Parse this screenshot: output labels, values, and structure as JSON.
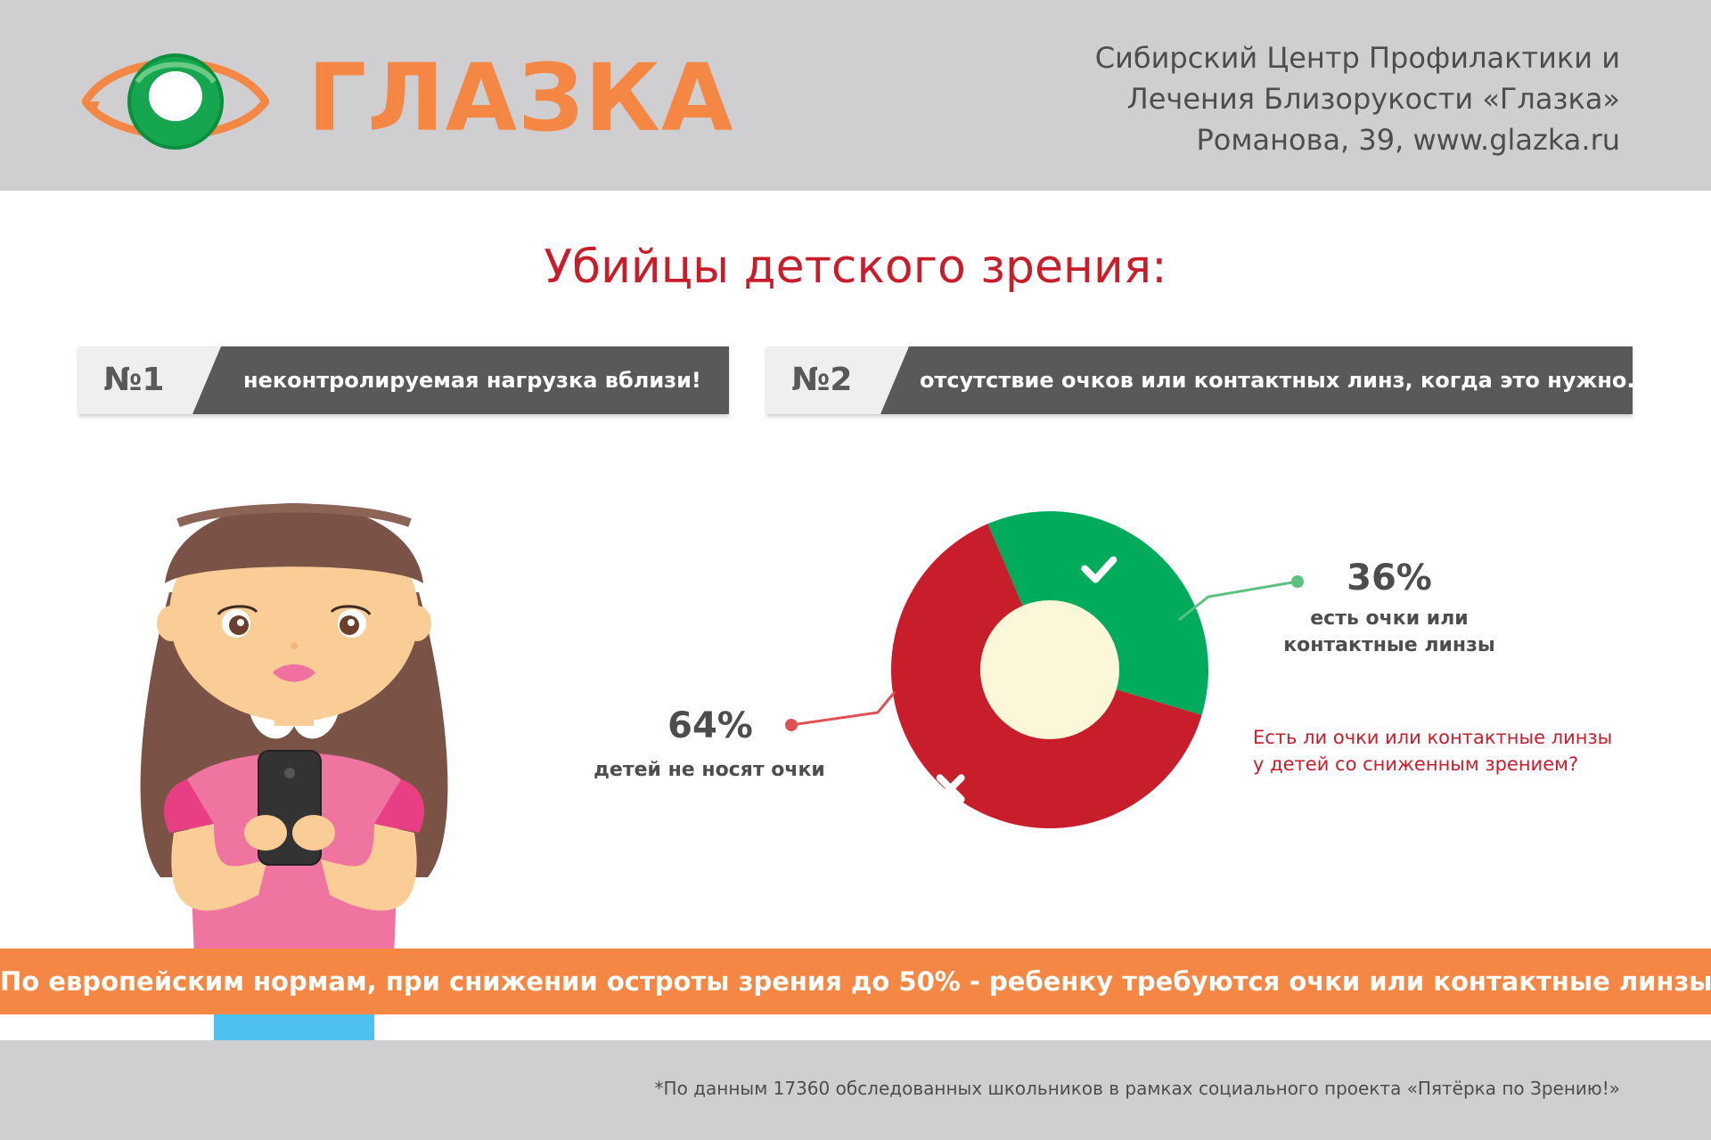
{
  "header": {
    "brand": "ГЛАЗКА",
    "clinic_lines": [
      "Сибирский Центр Профилактики и",
      "Лечения Близорукости «Глазка»",
      "Романова, 39, www.glazka.ru"
    ]
  },
  "title": "Убийцы детского зрения:",
  "banners": [
    {
      "num": "№1",
      "text": "неконтролируемая нагрузка вблизи!"
    },
    {
      "num": "№2",
      "text": "отсутствие очков или контактных линз, когда это нужно."
    }
  ],
  "chart_data": {
    "type": "pie",
    "title": "Есть ли очки или контактные линзы у детей со сниженным зрением?",
    "slices": [
      {
        "value": 36,
        "label": "36%",
        "description": "есть очки или контактные линзы",
        "color": "#00ab5c",
        "icon": "check-icon"
      },
      {
        "value": 64,
        "label": "64%",
        "description": "детей не носят очки",
        "color": "#c81e2b",
        "icon": "cross-icon"
      }
    ],
    "center_color": "#fdf7d9",
    "question_lines": [
      "Есть ли очки или контактные линзы",
      "у детей со сниженным зрением?"
    ],
    "label_36_lines": [
      "есть очки или",
      "контактные линзы"
    ]
  },
  "bottom_banner": "По европейским нормам, при снижении остроты зрения до 50% - ребенку требуются очки или контактные линзы.",
  "footnote": "*По данным 17360 обследованных школьников в рамках социального проекта «Пятёрка по Зрению!»",
  "colors": {
    "brand_orange": "#f58745",
    "brand_green": "#00ab5c",
    "accent_red": "#c81e2b",
    "header_gray": "#cfcfd1",
    "banner_dark": "#595959"
  }
}
